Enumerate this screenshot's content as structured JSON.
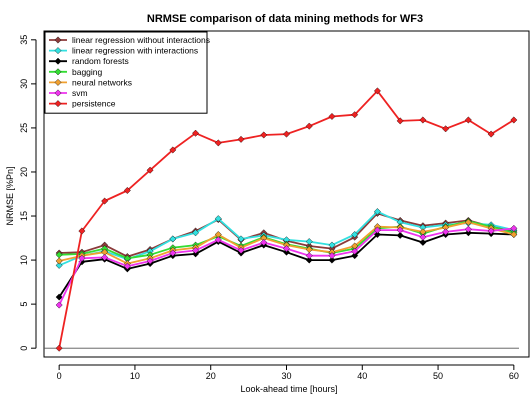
{
  "chart_data": {
    "type": "line",
    "title": "NRMSE comparison of data mining methods for WF3",
    "xlabel": "Look-ahead time [hours]",
    "ylabel": "NRMSE [%Pn]",
    "xlim": [
      -2,
      62
    ],
    "ylim": [
      -1,
      36
    ],
    "xticks": [
      "0",
      "10",
      "20",
      "30",
      "40",
      "50",
      "60"
    ],
    "yticks": [
      "0",
      "5",
      "10",
      "15",
      "20",
      "25",
      "30",
      "35"
    ],
    "grid": false,
    "legend_position": "top-left",
    "x": [
      0,
      3,
      6,
      9,
      12,
      15,
      18,
      21,
      24,
      27,
      30,
      33,
      36,
      39,
      42,
      45,
      48,
      51,
      54,
      57,
      60
    ],
    "series": [
      {
        "name": "linear regression without interactions",
        "color": "#8B3A3A",
        "values": [
          10.8,
          10.9,
          11.7,
          10.4,
          11.2,
          12.4,
          13.3,
          14.6,
          12.3,
          13.1,
          12.2,
          11.6,
          11.3,
          12.6,
          15.3,
          14.5,
          13.9,
          14.2,
          14.5,
          13.8,
          13.3
        ]
      },
      {
        "name": "linear regression with interactions",
        "color": "#33E0E0",
        "values": [
          9.4,
          10.5,
          11.0,
          10.1,
          11.0,
          12.4,
          13.1,
          14.7,
          12.4,
          12.8,
          12.3,
          12.1,
          11.7,
          12.9,
          15.5,
          14.3,
          13.7,
          14.0,
          14.2,
          14.0,
          13.4
        ]
      },
      {
        "name": "random forests",
        "color": "#000000",
        "values": [
          5.8,
          9.8,
          10.1,
          9.0,
          9.6,
          10.5,
          10.7,
          12.1,
          10.8,
          11.7,
          10.9,
          10.0,
          10.0,
          10.5,
          12.9,
          12.8,
          12.0,
          12.9,
          13.1,
          13.0,
          12.9
        ]
      },
      {
        "name": "bagging",
        "color": "#33DD33",
        "values": [
          10.6,
          10.7,
          11.3,
          10.2,
          10.6,
          11.4,
          11.7,
          12.7,
          11.6,
          12.6,
          11.8,
          11.3,
          10.8,
          11.3,
          13.6,
          13.8,
          13.0,
          13.8,
          14.4,
          13.8,
          13.1
        ]
      },
      {
        "name": "neural networks",
        "color": "#F0A030",
        "values": [
          9.9,
          10.5,
          10.9,
          9.6,
          10.2,
          11.1,
          11.4,
          12.9,
          11.4,
          12.5,
          11.7,
          11.2,
          10.9,
          11.6,
          13.8,
          13.7,
          13.2,
          13.7,
          14.3,
          13.6,
          12.9
        ]
      },
      {
        "name": "svm",
        "color": "#EE33EE",
        "values": [
          4.9,
          10.2,
          10.3,
          9.3,
          9.9,
          10.8,
          11.1,
          12.3,
          11.1,
          12.0,
          11.3,
          10.5,
          10.5,
          11.0,
          13.4,
          13.4,
          12.6,
          13.2,
          13.5,
          13.3,
          13.6
        ]
      },
      {
        "name": "persistence",
        "color": "#EE2222",
        "values": [
          0.0,
          13.3,
          16.7,
          17.9,
          20.2,
          22.5,
          24.4,
          23.3,
          23.7,
          24.2,
          24.3,
          25.2,
          26.3,
          26.5,
          29.2,
          25.8,
          25.9,
          24.9,
          25.9,
          24.3,
          25.9
        ]
      }
    ]
  }
}
